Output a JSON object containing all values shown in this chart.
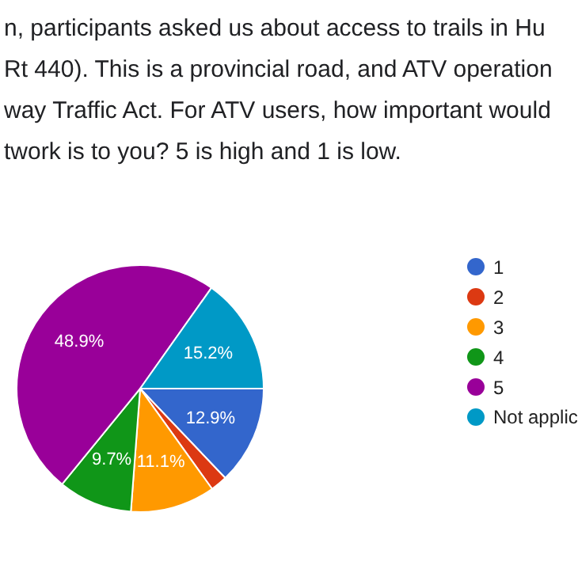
{
  "chart_data": {
    "type": "pie",
    "title": "n, participants asked us about access to trails in Hu\nRt 440). This is a provincial road, and ATV operation\nway Traffic Act. For ATV users, how important would\ntwork is to you? 5 is high and 1 is low.",
    "categories": [
      "1",
      "2",
      "3",
      "4",
      "5",
      "Not applic"
    ],
    "values": [
      12.9,
      2.2,
      11.1,
      9.7,
      48.9,
      15.2
    ],
    "colors": [
      "#3366cc",
      "#dc3912",
      "#ff9900",
      "#109618",
      "#990099",
      "#0099c6"
    ],
    "value_labels": [
      "12.9%",
      null,
      "11.1%",
      "9.7%",
      "48.9%",
      "15.2%"
    ],
    "legend": "right"
  }
}
